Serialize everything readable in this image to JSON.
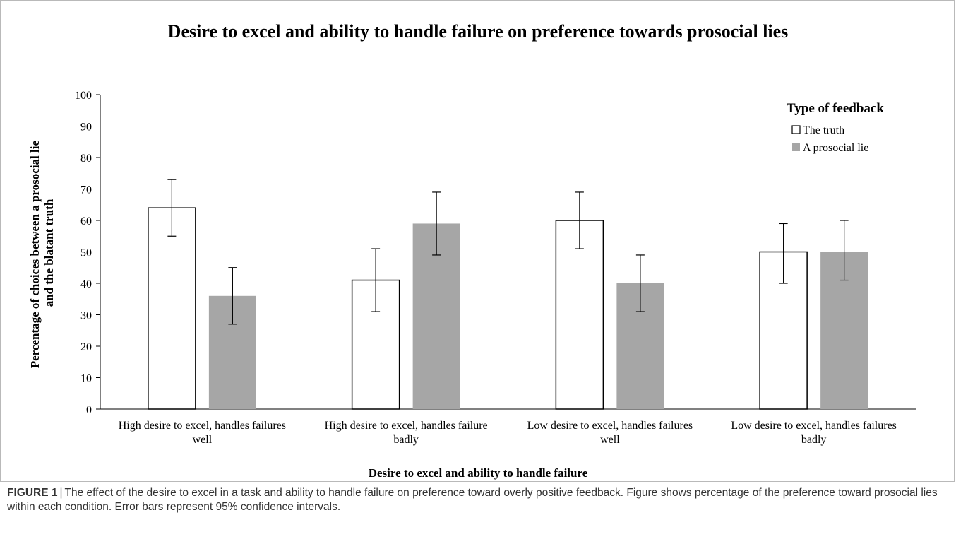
{
  "chart_data": {
    "type": "bar",
    "title": "Desire to excel and ability to handle failure on preference towards prosocial lies",
    "xlabel": "Desire to excel and ability to handle failure",
    "ylabel": "Percentage of choices between a prosocial lie and the blatant truth",
    "ylim": [
      0,
      100
    ],
    "yticks": [
      0,
      10,
      20,
      30,
      40,
      50,
      60,
      70,
      80,
      90,
      100
    ],
    "categories": [
      [
        "High desire to excel, handles failures",
        "well"
      ],
      [
        "High desire to excel, handles failure",
        "badly"
      ],
      [
        "Low desire to excel, handles failures",
        "well"
      ],
      [
        "Low desire to excel, handles failures",
        "badly"
      ]
    ],
    "legend_title": "Type of feedback",
    "legend_position": "top-right",
    "grid": false,
    "series": [
      {
        "name": "The truth",
        "color": "#ffffff",
        "values": [
          64,
          41,
          60,
          50
        ],
        "error_low": [
          55,
          31,
          51,
          40
        ],
        "error_high": [
          73,
          51,
          69,
          59
        ]
      },
      {
        "name": "A prosocial lie",
        "color": "#a6a6a6",
        "values": [
          36,
          59,
          40,
          50
        ],
        "error_low": [
          27,
          49,
          31,
          41
        ],
        "error_high": [
          45,
          69,
          49,
          60
        ]
      }
    ]
  },
  "caption": {
    "label": "FIGURE 1",
    "separator": "|",
    "text": "The effect of the desire to excel in a task and ability to handle failure on preference toward overly positive feedback. Figure shows percentage of the preference toward prosocial lies within each condition. Error bars represent 95% confidence intervals."
  }
}
